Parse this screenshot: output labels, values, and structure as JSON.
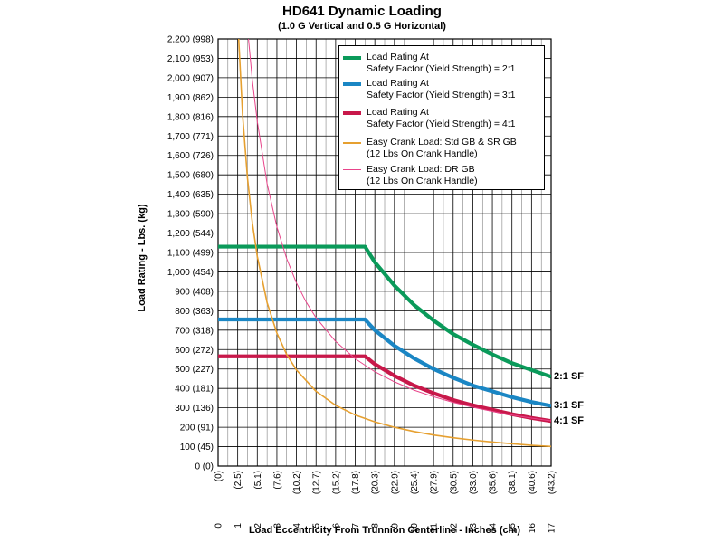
{
  "chart_data": {
    "type": "line",
    "title": "HD641 Dynamic Loading",
    "subtitle": "(1.0 G Vertical and 0.5 G Horizontal)",
    "ylabel": "Load Rating - Lbs. (kg)",
    "xlabel": "Load Eccentricity From Trunnion Centerline - Inches (cm)",
    "xlim": [
      0,
      17
    ],
    "ylim": [
      0,
      2200
    ],
    "grid": true,
    "legend_placement": "top-right",
    "y_ticks": [
      {
        "value": 0,
        "label": "0",
        "kg": "(0)"
      },
      {
        "value": 100,
        "label": "100",
        "kg": "(45)"
      },
      {
        "value": 200,
        "label": "200",
        "kg": "(91)"
      },
      {
        "value": 300,
        "label": "300",
        "kg": "(136)"
      },
      {
        "value": 400,
        "label": "400",
        "kg": "(181)"
      },
      {
        "value": 500,
        "label": "500",
        "kg": "(227)"
      },
      {
        "value": 600,
        "label": "600",
        "kg": "(272)"
      },
      {
        "value": 700,
        "label": "700",
        "kg": "(318)"
      },
      {
        "value": 800,
        "label": "800",
        "kg": "(363)"
      },
      {
        "value": 900,
        "label": "900",
        "kg": "(408)"
      },
      {
        "value": 1000,
        "label": "1,000",
        "kg": "(454)"
      },
      {
        "value": 1100,
        "label": "1,100",
        "kg": "(499)"
      },
      {
        "value": 1200,
        "label": "1,200",
        "kg": "(544)"
      },
      {
        "value": 1300,
        "label": "1,300",
        "kg": "(590)"
      },
      {
        "value": 1400,
        "label": "1,400",
        "kg": "(635)"
      },
      {
        "value": 1500,
        "label": "1,500",
        "kg": "(680)"
      },
      {
        "value": 1600,
        "label": "1,600",
        "kg": "(726)"
      },
      {
        "value": 1700,
        "label": "1,700",
        "kg": "(771)"
      },
      {
        "value": 1800,
        "label": "1,800",
        "kg": "(816)"
      },
      {
        "value": 1900,
        "label": "1,900",
        "kg": "(862)"
      },
      {
        "value": 2000,
        "label": "2,000",
        "kg": "(907)"
      },
      {
        "value": 2100,
        "label": "2,100",
        "kg": "(953)"
      },
      {
        "value": 2200,
        "label": "2,200",
        "kg": "(998)"
      }
    ],
    "x_ticks": [
      {
        "value": 0,
        "label": "0",
        "cm": "(0)"
      },
      {
        "value": 1,
        "label": "1",
        "cm": "(2.5)"
      },
      {
        "value": 2,
        "label": "2",
        "cm": "(5.1)"
      },
      {
        "value": 3,
        "label": "3",
        "cm": "(7.6)"
      },
      {
        "value": 4,
        "label": "4",
        "cm": "(10.2)"
      },
      {
        "value": 5,
        "label": "5",
        "cm": "(12.7)"
      },
      {
        "value": 6,
        "label": "6",
        "cm": "(15.2)"
      },
      {
        "value": 7,
        "label": "7",
        "cm": "(17.8)"
      },
      {
        "value": 8,
        "label": "8",
        "cm": "(20.3)"
      },
      {
        "value": 9,
        "label": "9",
        "cm": "(22.9)"
      },
      {
        "value": 10,
        "label": "10",
        "cm": "(25.4)"
      },
      {
        "value": 11,
        "label": "11",
        "cm": "(27.9)"
      },
      {
        "value": 12,
        "label": "12",
        "cm": "(30.5)"
      },
      {
        "value": 13,
        "label": "13",
        "cm": "(33.0)"
      },
      {
        "value": 14,
        "label": "14",
        "cm": "(35.6)"
      },
      {
        "value": 15,
        "label": "15",
        "cm": "(38.1)"
      },
      {
        "value": 16,
        "label": "16",
        "cm": "(40.6)"
      },
      {
        "value": 17,
        "label": "17",
        "cm": "(43.2)"
      }
    ],
    "series": [
      {
        "name": "Load Rating At Safety Factor (Yield Strength) = 2:1",
        "end_label": "2:1 SF",
        "color": "#0a9a5a",
        "weight": "thick",
        "x": [
          0,
          7.5,
          8,
          9,
          10,
          11,
          12,
          13,
          14,
          15,
          16,
          17
        ],
        "y": [
          1130,
          1130,
          1050,
          930,
          830,
          750,
          680,
          625,
          575,
          530,
          495,
          460
        ]
      },
      {
        "name": "Load Rating At Safety Factor (Yield Strength) = 3:1",
        "end_label": "3:1 SF",
        "color": "#1a86c4",
        "weight": "thick",
        "x": [
          0,
          7.5,
          8,
          9,
          10,
          11,
          12,
          13,
          14,
          15,
          16,
          17
        ],
        "y": [
          755,
          755,
          700,
          620,
          555,
          500,
          455,
          415,
          385,
          355,
          330,
          310
        ]
      },
      {
        "name": "Load Rating At Safety Factor (Yield Strength) = 4:1",
        "end_label": "4:1 SF",
        "color": "#c8184a",
        "weight": "thick",
        "x": [
          0,
          7.5,
          8,
          9,
          10,
          11,
          12,
          13,
          14,
          15,
          16,
          17
        ],
        "y": [
          565,
          565,
          525,
          465,
          415,
          375,
          340,
          313,
          290,
          267,
          248,
          232
        ]
      },
      {
        "name": "Easy Crank Load: Std GB & SR GB (12 Lbs On Crank Handle)",
        "color": "#e6a030",
        "weight": "thin",
        "x": [
          1.05,
          1.25,
          1.5,
          1.75,
          2,
          2.5,
          3,
          3.5,
          4,
          5,
          6,
          7,
          8,
          9,
          10,
          11,
          12,
          13,
          14,
          15,
          16,
          17
        ],
        "y": [
          2200,
          1808,
          1483,
          1251,
          1080,
          842,
          685,
          575,
          495,
          385,
          313,
          263,
          228,
          200,
          178,
          160,
          146,
          134,
          124,
          115,
          107,
          101
        ]
      },
      {
        "name": "Easy Crank Load: DR GB (12 Lbs On Crank Handle)",
        "color": "#e8448a",
        "weight": "thin",
        "x": [
          1.55,
          1.75,
          2,
          2.5,
          3,
          3.5,
          4,
          4.5,
          5,
          6,
          7,
          8,
          9,
          10,
          11,
          12,
          13,
          14,
          15,
          16,
          17
        ],
        "y": [
          2200,
          1984,
          1775,
          1455,
          1232,
          1068,
          943,
          844,
          764,
          642,
          553,
          486,
          434,
          391,
          357,
          328,
          303,
          282,
          263,
          247,
          233
        ]
      }
    ]
  }
}
